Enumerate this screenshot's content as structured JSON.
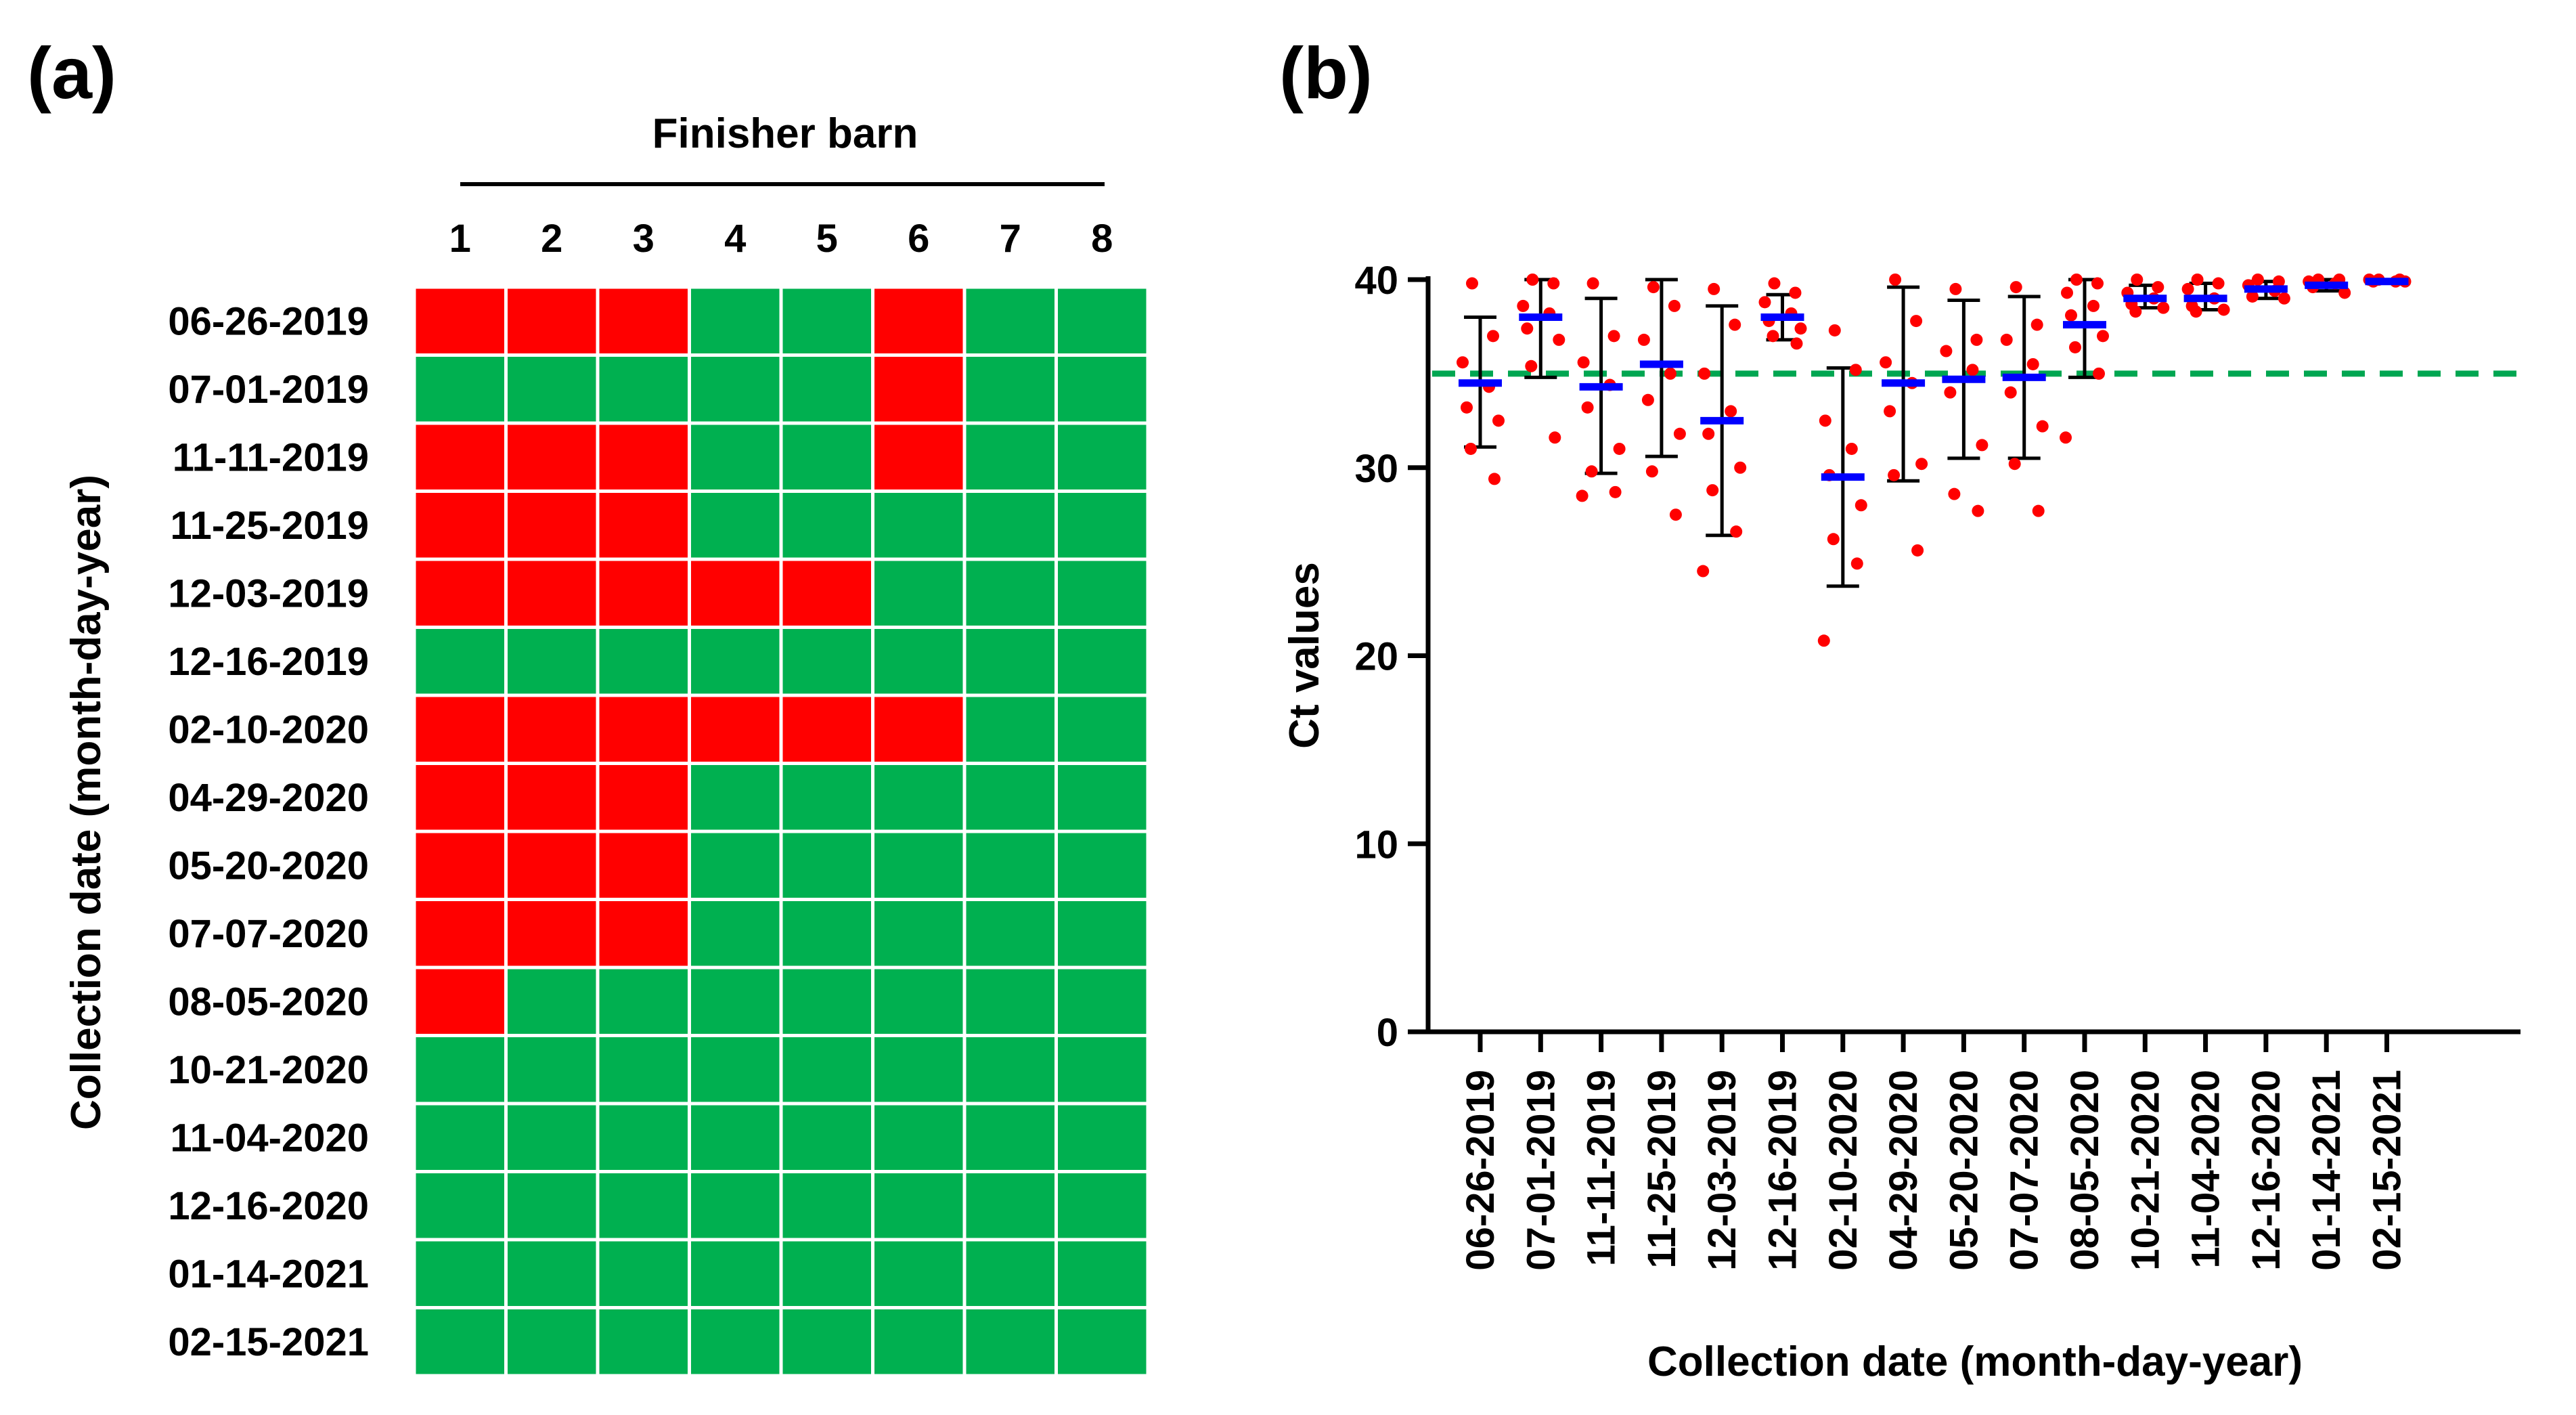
{
  "chart_data": [
    {
      "type": "heatmap",
      "panel_label": "(a)",
      "column_group_label": "Finisher barn",
      "columns": [
        "1",
        "2",
        "3",
        "4",
        "5",
        "6",
        "7",
        "8"
      ],
      "ylabel": "Collection date (month-day-year)",
      "rows": [
        "06-26-2019",
        "07-01-2019",
        "11-11-2019",
        "11-25-2019",
        "12-03-2019",
        "12-16-2019",
        "02-10-2020",
        "04-29-2020",
        "05-20-2020",
        "07-07-2020",
        "08-05-2020",
        "10-21-2020",
        "11-04-2020",
        "12-16-2020",
        "01-14-2021",
        "02-15-2021"
      ],
      "colors": {
        "1": "#ff0000",
        "0": "#00b050"
      },
      "values": [
        [
          1,
          1,
          1,
          0,
          0,
          1,
          0,
          0
        ],
        [
          0,
          0,
          0,
          0,
          0,
          1,
          0,
          0
        ],
        [
          1,
          1,
          1,
          0,
          0,
          1,
          0,
          0
        ],
        [
          1,
          1,
          1,
          0,
          0,
          0,
          0,
          0
        ],
        [
          1,
          1,
          1,
          1,
          1,
          0,
          0,
          0
        ],
        [
          0,
          0,
          0,
          0,
          0,
          0,
          0,
          0
        ],
        [
          1,
          1,
          1,
          1,
          1,
          1,
          0,
          0
        ],
        [
          1,
          1,
          1,
          0,
          0,
          0,
          0,
          0
        ],
        [
          1,
          1,
          1,
          0,
          0,
          0,
          0,
          0
        ],
        [
          1,
          1,
          1,
          0,
          0,
          0,
          0,
          0
        ],
        [
          1,
          0,
          0,
          0,
          0,
          0,
          0,
          0
        ],
        [
          0,
          0,
          0,
          0,
          0,
          0,
          0,
          0
        ],
        [
          0,
          0,
          0,
          0,
          0,
          0,
          0,
          0
        ],
        [
          0,
          0,
          0,
          0,
          0,
          0,
          0,
          0
        ],
        [
          0,
          0,
          0,
          0,
          0,
          0,
          0,
          0
        ],
        [
          0,
          0,
          0,
          0,
          0,
          0,
          0,
          0
        ]
      ]
    },
    {
      "type": "scatter",
      "panel_label": "(b)",
      "xlabel": "Collection date (month-day-year)",
      "ylabel": "Ct values",
      "ylim": [
        0,
        40
      ],
      "yticks": [
        0,
        10,
        20,
        30,
        40
      ],
      "reference_line": {
        "y": 35,
        "color": "#00a651",
        "style": "dashed"
      },
      "colors": {
        "points": "#ff0000",
        "mean": "#0000ff",
        "error_bar": "#000000"
      },
      "categories": [
        "06-26-2019",
        "07-01-2019",
        "11-11-2019",
        "11-25-2019",
        "12-03-2019",
        "12-16-2019",
        "02-10-2020",
        "04-29-2020",
        "05-20-2020",
        "07-07-2020",
        "08-05-2020",
        "10-21-2020",
        "11-04-2020",
        "12-16-2020",
        "01-14-2021",
        "02-15-2021"
      ],
      "groups": [
        {
          "mean": 34.5,
          "upper": 38.0,
          "lower": 31.1,
          "points": [
            39.8,
            37.0,
            35.6,
            34.3,
            33.2,
            32.5,
            31.0,
            29.4
          ]
        },
        {
          "mean": 38.0,
          "upper": 40.0,
          "lower": 34.8,
          "points": [
            40.0,
            39.8,
            38.6,
            38.2,
            37.4,
            36.8,
            35.4,
            31.6
          ]
        },
        {
          "mean": 34.3,
          "upper": 39.0,
          "lower": 29.7,
          "points": [
            39.8,
            37.0,
            35.6,
            34.4,
            33.2,
            31.0,
            29.8,
            28.7,
            28.5
          ]
        },
        {
          "mean": 35.5,
          "upper": 40.0,
          "lower": 30.6,
          "points": [
            39.6,
            38.6,
            36.8,
            35.0,
            33.6,
            31.8,
            29.8,
            27.5
          ]
        },
        {
          "mean": 32.5,
          "upper": 38.6,
          "lower": 26.4,
          "points": [
            39.5,
            37.6,
            35.0,
            33.0,
            31.8,
            30.0,
            28.8,
            26.6,
            24.5
          ]
        },
        {
          "mean": 38.0,
          "upper": 39.2,
          "lower": 36.8,
          "points": [
            39.8,
            39.3,
            38.8,
            38.2,
            37.8,
            37.4,
            37.0,
            36.6
          ]
        },
        {
          "mean": 29.5,
          "upper": 35.3,
          "lower": 23.7,
          "points": [
            37.3,
            35.2,
            32.5,
            31.0,
            29.6,
            28.0,
            26.2,
            24.9,
            20.8
          ]
        },
        {
          "mean": 34.5,
          "upper": 39.6,
          "lower": 29.3,
          "points": [
            40.0,
            37.8,
            35.6,
            34.5,
            33.0,
            30.2,
            29.6,
            25.6
          ]
        },
        {
          "mean": 34.7,
          "upper": 38.9,
          "lower": 30.5,
          "points": [
            39.5,
            36.8,
            36.2,
            35.2,
            34.0,
            31.2,
            28.6,
            27.7
          ]
        },
        {
          "mean": 34.8,
          "upper": 39.1,
          "lower": 30.5,
          "points": [
            39.6,
            37.6,
            36.8,
            35.5,
            34.0,
            32.2,
            30.2,
            27.7
          ]
        },
        {
          "mean": 37.6,
          "upper": 40.0,
          "lower": 34.8,
          "points": [
            40.0,
            39.8,
            39.3,
            38.6,
            38.1,
            37.0,
            36.4,
            35.0,
            31.6
          ]
        },
        {
          "mean": 39.0,
          "upper": 39.7,
          "lower": 38.5,
          "points": [
            40.0,
            39.6,
            39.3,
            39.0,
            38.7,
            38.5,
            38.3
          ]
        },
        {
          "mean": 39.0,
          "upper": 39.8,
          "lower": 38.4,
          "points": [
            40.0,
            39.8,
            39.5,
            39.0,
            38.6,
            38.4,
            38.3
          ]
        },
        {
          "mean": 39.5,
          "upper": 39.9,
          "lower": 39.0,
          "points": [
            40.0,
            39.9,
            39.7,
            39.4,
            39.1,
            39.0
          ]
        },
        {
          "mean": 39.7,
          "upper": 40.0,
          "lower": 39.4,
          "points": [
            40.0,
            40.0,
            39.9,
            39.8,
            39.6,
            39.3
          ]
        },
        {
          "mean": 39.9,
          "upper": 40.0,
          "lower": 39.8,
          "points": [
            40.0,
            40.0,
            40.0,
            39.9,
            39.9,
            39.9
          ]
        }
      ]
    }
  ]
}
